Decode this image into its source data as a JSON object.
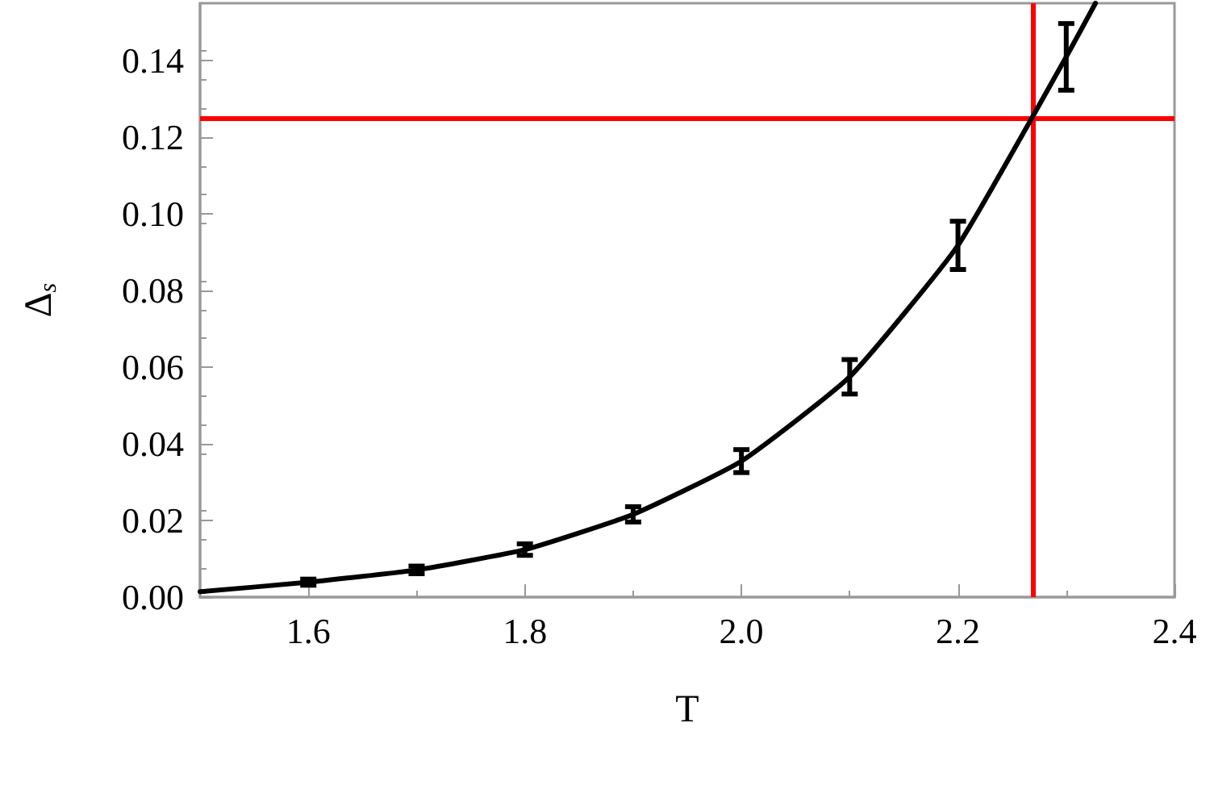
{
  "chart_data": {
    "type": "line",
    "xlabel": "T",
    "ylabel": "Δ$_{s}$",
    "xlim": [
      1.5,
      2.4
    ],
    "ylim": [
      0,
      0.155
    ],
    "xticks": [
      1.6,
      1.8,
      {
        "value": 2.0,
        "label": "2.0"
      },
      2.2,
      2.4
    ],
    "yticks": [
      {
        "value": 0,
        "label": "0.00"
      },
      {
        "value": 0.02,
        "label": "0.02"
      },
      {
        "value": 0.04,
        "label": "0.04"
      },
      {
        "value": 0.06,
        "label": "0.06"
      },
      {
        "value": 0.08,
        "label": "0.08"
      },
      {
        "value": 0.1,
        "label": "0.10"
      },
      {
        "value": 0.12,
        "label": "0.12"
      },
      {
        "value": 0.14,
        "label": "0.14"
      }
    ],
    "series": [
      {
        "color": "#000000",
        "x": [
          1.5,
          1.6,
          1.7,
          1.8,
          1.9,
          2.0,
          2.1,
          2.2,
          2.3,
          2.327
        ],
        "values": [
          0.0014,
          0.0039,
          0.0071,
          0.0124,
          0.0216,
          0.0355,
          0.0575,
          0.0918,
          0.141,
          0.155
        ],
        "errors": [
          null,
          0.0008,
          0.001,
          0.0015,
          0.002,
          0.003,
          0.0045,
          0.0063,
          0.0087,
          null
        ]
      }
    ],
    "ref_lines": [
      {
        "axis": "y",
        "value": 0.125,
        "color": "#ff0000"
      },
      {
        "axis": "x",
        "value": 2.269,
        "color": "#ff0000"
      }
    ],
    "marker": "none",
    "line_style": "solid"
  }
}
